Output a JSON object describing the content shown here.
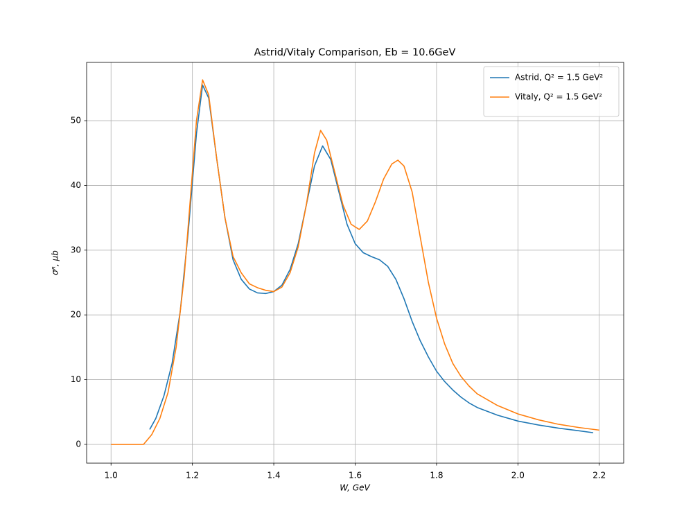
{
  "chart_data": {
    "type": "line",
    "title": "Astrid/Vitaly Comparison, Eb = 10.6GeV",
    "x_label": "W, GeV",
    "y_label": "σᴿ, μb",
    "series": [
      {
        "name": "Astrid, Q² = 1.5 GeV²",
        "color": "#1f77b4",
        "x": [
          1.095,
          1.11,
          1.13,
          1.15,
          1.17,
          1.19,
          1.21,
          1.225,
          1.24,
          1.26,
          1.28,
          1.3,
          1.32,
          1.34,
          1.36,
          1.38,
          1.4,
          1.42,
          1.44,
          1.46,
          1.48,
          1.5,
          1.52,
          1.54,
          1.56,
          1.58,
          1.6,
          1.62,
          1.64,
          1.66,
          1.68,
          1.7,
          1.72,
          1.74,
          1.76,
          1.78,
          1.8,
          1.82,
          1.84,
          1.86,
          1.88,
          1.9,
          1.95,
          2.0,
          2.05,
          2.1,
          2.15,
          2.185
        ],
        "values": [
          2.3,
          4,
          7.5,
          12.5,
          20.5,
          33,
          48,
          55.5,
          53.5,
          44,
          35,
          28.5,
          25.5,
          24,
          23.4,
          23.3,
          23.6,
          24.6,
          27,
          31,
          37,
          43,
          46.1,
          44,
          39,
          34,
          31,
          29.6,
          29,
          28.5,
          27.5,
          25.5,
          22.5,
          19,
          16,
          13.5,
          11.3,
          9.7,
          8.4,
          7.3,
          6.4,
          5.7,
          4.5,
          3.6,
          3.0,
          2.5,
          2.1,
          1.8
        ]
      },
      {
        "name": "Vitaly, Q² = 1.5 GeV²",
        "color": "#ff7f0e",
        "x": [
          1.0,
          1.04,
          1.08,
          1.1,
          1.12,
          1.14,
          1.16,
          1.18,
          1.2,
          1.21,
          1.225,
          1.24,
          1.26,
          1.28,
          1.3,
          1.32,
          1.34,
          1.36,
          1.38,
          1.4,
          1.42,
          1.44,
          1.46,
          1.48,
          1.5,
          1.515,
          1.53,
          1.55,
          1.57,
          1.59,
          1.61,
          1.63,
          1.65,
          1.67,
          1.69,
          1.705,
          1.72,
          1.74,
          1.76,
          1.78,
          1.8,
          1.82,
          1.84,
          1.86,
          1.88,
          1.9,
          1.95,
          2.0,
          2.05,
          2.1,
          2.15,
          2.2
        ],
        "values": [
          0,
          0,
          0,
          1.5,
          4,
          8,
          15,
          26,
          42,
          50,
          56.3,
          54,
          44,
          35,
          29,
          26.5,
          24.8,
          24.2,
          23.8,
          23.6,
          24.3,
          26.5,
          30.5,
          37,
          45,
          48.5,
          47,
          42,
          37,
          34,
          33.2,
          34.5,
          37.5,
          41,
          43.3,
          43.9,
          43,
          39,
          32,
          25,
          19.5,
          15.5,
          12.5,
          10.5,
          9,
          7.8,
          6,
          4.7,
          3.8,
          3.1,
          2.6,
          2.2
        ]
      }
    ],
    "xlim": [
      0.94,
      2.26
    ],
    "ylim": [
      -2.9,
      59
    ],
    "xticks": [
      {
        "value": 1,
        "label": "1.0"
      },
      1.2,
      1.4,
      1.6,
      1.8,
      {
        "value": 2,
        "label": "2.0"
      },
      2.2
    ],
    "yticks": [
      0,
      10,
      20,
      30,
      40,
      50
    ],
    "grid": true,
    "legend": "upper-right"
  }
}
